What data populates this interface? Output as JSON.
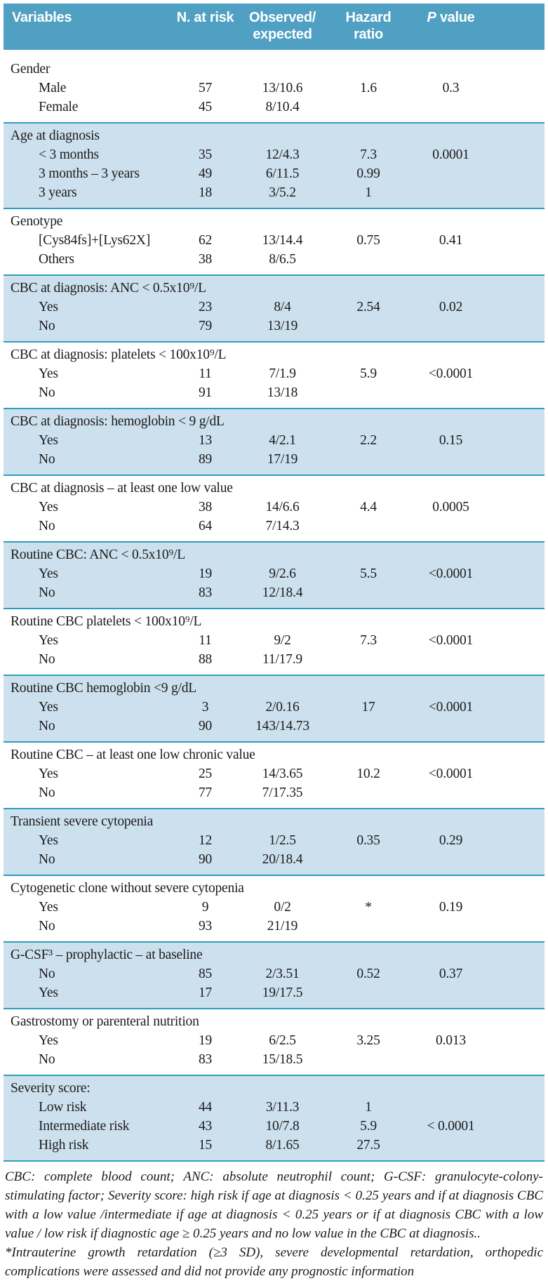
{
  "header": {
    "variables": "Variables",
    "n_at_risk": "N. at risk",
    "observed_expected": "Observed/\nexpected",
    "hazard_ratio": "Hazard\nratio",
    "p_italic": "P",
    "p_rest": " value"
  },
  "groups": [
    {
      "title": "Gender",
      "shaded": false,
      "rows": [
        {
          "label": "Male",
          "n": "57",
          "oe": "13/10.6",
          "hr": "1.6",
          "p": "0.3"
        },
        {
          "label": "Female",
          "n": "45",
          "oe": "8/10.4",
          "hr": "",
          "p": ""
        }
      ]
    },
    {
      "title": "Age at diagnosis",
      "shaded": true,
      "rows": [
        {
          "label": "< 3 months",
          "n": "35",
          "oe": "12/4.3",
          "hr": "7.3",
          "p": "0.0001"
        },
        {
          "label": "3 months – 3 years",
          "n": "49",
          "oe": "6/11.5",
          "hr": "0.99",
          "p": ""
        },
        {
          "label": "3 years",
          "n": "18",
          "oe": "3/5.2",
          "hr": "1",
          "p": ""
        }
      ]
    },
    {
      "title": "Genotype",
      "shaded": false,
      "rows": [
        {
          "label": "[Cys84fs]+[Lys62X]",
          "n": "62",
          "oe": "13/14.4",
          "hr": "0.75",
          "p": "0.41"
        },
        {
          "label": "Others",
          "n": "38",
          "oe": "8/6.5",
          "hr": "",
          "p": ""
        }
      ]
    },
    {
      "title": "CBC at diagnosis: ANC < 0.5x10⁹/L",
      "shaded": true,
      "rows": [
        {
          "label": "Yes",
          "n": "23",
          "oe": "8/4",
          "hr": "2.54",
          "p": "0.02"
        },
        {
          "label": "No",
          "n": "79",
          "oe": "13/19",
          "hr": "",
          "p": ""
        }
      ]
    },
    {
      "title": "CBC at diagnosis: platelets < 100x10⁹/L",
      "shaded": false,
      "rows": [
        {
          "label": "Yes",
          "n": "11",
          "oe": "7/1.9",
          "hr": "5.9",
          "p": "<0.0001"
        },
        {
          "label": "No",
          "n": "91",
          "oe": "13/18",
          "hr": "",
          "p": ""
        }
      ]
    },
    {
      "title": "CBC at diagnosis: hemoglobin < 9 g/dL",
      "shaded": true,
      "rows": [
        {
          "label": "Yes",
          "n": "13",
          "oe": "4/2.1",
          "hr": "2.2",
          "p": "0.15"
        },
        {
          "label": "No",
          "n": "89",
          "oe": "17/19",
          "hr": "",
          "p": ""
        }
      ]
    },
    {
      "title": "CBC at diagnosis – at least one low value",
      "shaded": false,
      "rows": [
        {
          "label": "Yes",
          "n": "38",
          "oe": "14/6.6",
          "hr": "4.4",
          "p": "0.0005"
        },
        {
          "label": "No",
          "n": "64",
          "oe": "7/14.3",
          "hr": "",
          "p": ""
        }
      ]
    },
    {
      "title": "Routine CBC: ANC < 0.5x10⁹/L",
      "shaded": true,
      "rows": [
        {
          "label": "Yes",
          "n": "19",
          "oe": "9/2.6",
          "hr": "5.5",
          "p": "<0.0001"
        },
        {
          "label": "No",
          "n": "83",
          "oe": "12/18.4",
          "hr": "",
          "p": ""
        }
      ]
    },
    {
      "title": "Routine CBC platelets < 100x10⁹/L",
      "shaded": false,
      "rows": [
        {
          "label": "Yes",
          "n": "11",
          "oe": "9/2",
          "hr": "7.3",
          "p": "<0.0001"
        },
        {
          "label": "No",
          "n": "88",
          "oe": "11/17.9",
          "hr": "",
          "p": ""
        }
      ]
    },
    {
      "title": "Routine CBC hemoglobin <9 g/dL",
      "shaded": true,
      "rows": [
        {
          "label": "Yes",
          "n": "3",
          "oe": "2/0.16",
          "hr": "17",
          "p": "<0.0001"
        },
        {
          "label": "No",
          "n": "90",
          "oe": "143/14.73",
          "hr": "",
          "p": ""
        }
      ]
    },
    {
      "title": "Routine CBC – at least one low chronic value",
      "shaded": false,
      "rows": [
        {
          "label": "Yes",
          "n": "25",
          "oe": "14/3.65",
          "hr": "10.2",
          "p": "<0.0001"
        },
        {
          "label": "No",
          "n": "77",
          "oe": "7/17.35",
          "hr": "",
          "p": ""
        }
      ]
    },
    {
      "title": "Transient severe cytopenia",
      "shaded": true,
      "rows": [
        {
          "label": "Yes",
          "n": "12",
          "oe": "1/2.5",
          "hr": "0.35",
          "p": "0.29"
        },
        {
          "label": "No",
          "n": "90",
          "oe": "20/18.4",
          "hr": "",
          "p": ""
        }
      ]
    },
    {
      "title": "Cytogenetic clone without severe cytopenia",
      "shaded": false,
      "rows": [
        {
          "label": "Yes",
          "n": "9",
          "oe": "0/2",
          "hr": "*",
          "p": "0.19"
        },
        {
          "label": "No",
          "n": "93",
          "oe": "21/19",
          "hr": "",
          "p": ""
        }
      ]
    },
    {
      "title": "G-CSF³ – prophylactic – at baseline",
      "shaded": true,
      "rows": [
        {
          "label": "No",
          "n": "85",
          "oe": "2/3.51",
          "hr": "0.52",
          "p": "0.37"
        },
        {
          "label": "Yes",
          "n": "17",
          "oe": "19/17.5",
          "hr": "",
          "p": ""
        }
      ]
    },
    {
      "title": "Gastrostomy or parenteral nutrition",
      "shaded": false,
      "rows": [
        {
          "label": "Yes",
          "n": "19",
          "oe": "6/2.5",
          "hr": "3.25",
          "p": "0.013"
        },
        {
          "label": "No",
          "n": "83",
          "oe": "15/18.5",
          "hr": "",
          "p": ""
        }
      ]
    },
    {
      "title": "Severity score:",
      "shaded": true,
      "rows": [
        {
          "label": "Low risk",
          "n": "44",
          "oe": "3/11.3",
          "hr": "1",
          "p": ""
        },
        {
          "label": "Intermediate risk",
          "n": "43",
          "oe": "10/7.8",
          "hr": "5.9",
          "p": "< 0.0001"
        },
        {
          "label": "High risk",
          "n": "15",
          "oe": "8/1.65",
          "hr": "27.5",
          "p": ""
        }
      ]
    }
  ],
  "footnotes": [
    "CBC: complete blood count; ANC: absolute neutrophil count; G-CSF: granulocyte-colony-stimulating factor; Severity score: high risk if age at diagnosis < 0.25 years and if at diagnosis CBC with a low value /intermediate if age at diagnosis < 0.25 years or if at diagnosis CBC with a low value / low risk if diagnostic age ≥ 0.25 years and no low value in the CBC at diagnosis..",
    "*Intrauterine growth retardation (≥3 SD), severe developmental retardation, orthopedic complications were assessed and did not provide any prognostic information"
  ],
  "colors": {
    "header_background": "#4fa0c2",
    "shaded_row_background": "#cde0ed",
    "rule_line": "#2f9ebe",
    "text": "#1b1b1b",
    "header_text": "#ffffff"
  }
}
